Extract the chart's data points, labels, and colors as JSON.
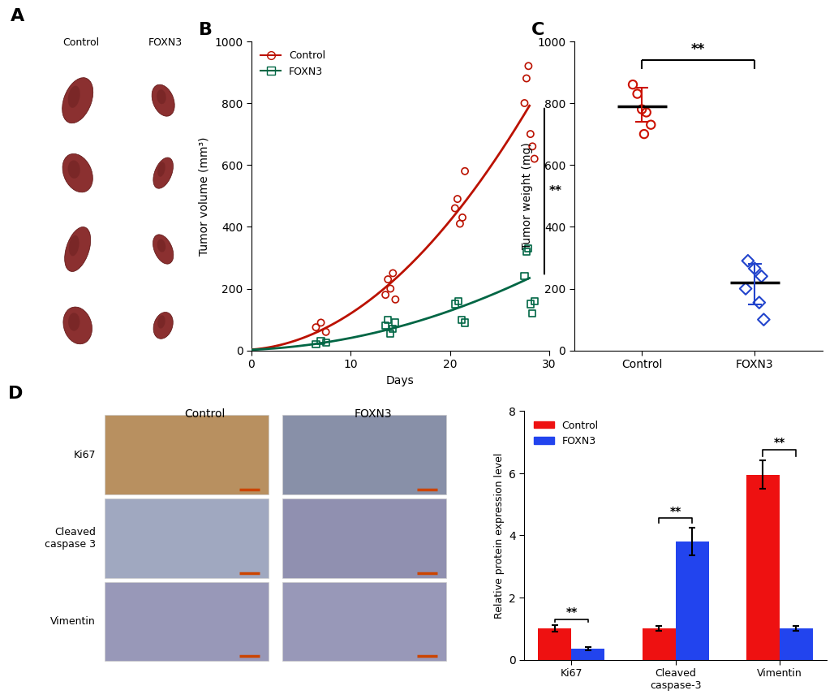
{
  "panel_B": {
    "control_scatter": {
      "day7": [
        75,
        90,
        60
      ],
      "day14": [
        180,
        230,
        200,
        250,
        165
      ],
      "day21": [
        460,
        490,
        410,
        430,
        580
      ],
      "day28": [
        800,
        880,
        920,
        700,
        660,
        620
      ]
    },
    "foxn3_scatter": {
      "day7": [
        20,
        30,
        25
      ],
      "day14": [
        80,
        100,
        55,
        70,
        90
      ],
      "day21": [
        150,
        160,
        100,
        90
      ],
      "day28": [
        240,
        320,
        330,
        150,
        120,
        160
      ]
    },
    "xlabel": "Days",
    "ylabel": "Tumor volume (mm³)",
    "ylim": [
      0,
      1000
    ],
    "xlim": [
      0,
      30
    ],
    "xticks": [
      0,
      10,
      20,
      30
    ],
    "yticks": [
      0,
      200,
      400,
      600,
      800,
      1000
    ]
  },
  "panel_C": {
    "control_points": [
      860,
      830,
      780,
      770,
      730,
      700
    ],
    "foxn3_points": [
      290,
      265,
      240,
      200,
      155,
      100
    ],
    "control_mean": 790,
    "foxn3_mean": 220,
    "control_sem_lo": 50,
    "control_sem_hi": 60,
    "foxn3_sem_lo": 70,
    "foxn3_sem_hi": 60,
    "ylabel": "Tumor weight (mg)",
    "ylim": [
      0,
      1000
    ],
    "yticks": [
      0,
      200,
      400,
      600,
      800,
      1000
    ],
    "categories": [
      "Control",
      "FOXN3"
    ]
  },
  "panel_D_bar": {
    "categories": [
      "Ki67",
      "Cleaved\ncaspase-3",
      "Vimentin"
    ],
    "control_values": [
      1.0,
      1.0,
      5.95
    ],
    "foxn3_values": [
      0.35,
      3.8,
      1.0
    ],
    "control_errors": [
      0.1,
      0.08,
      0.45
    ],
    "foxn3_errors": [
      0.05,
      0.45,
      0.08
    ],
    "ylabel": "Relative protein expression level",
    "ylim": [
      0,
      8
    ],
    "yticks": [
      0,
      2,
      4,
      6,
      8
    ],
    "control_color": "#ee1111",
    "foxn3_color": "#2244ee"
  },
  "colors": {
    "control_line": "#bb1100",
    "foxn3_line": "#006644",
    "control_scatter": "#bb1100",
    "foxn3_scatter": "#006644"
  },
  "background_color": "#ffffff"
}
